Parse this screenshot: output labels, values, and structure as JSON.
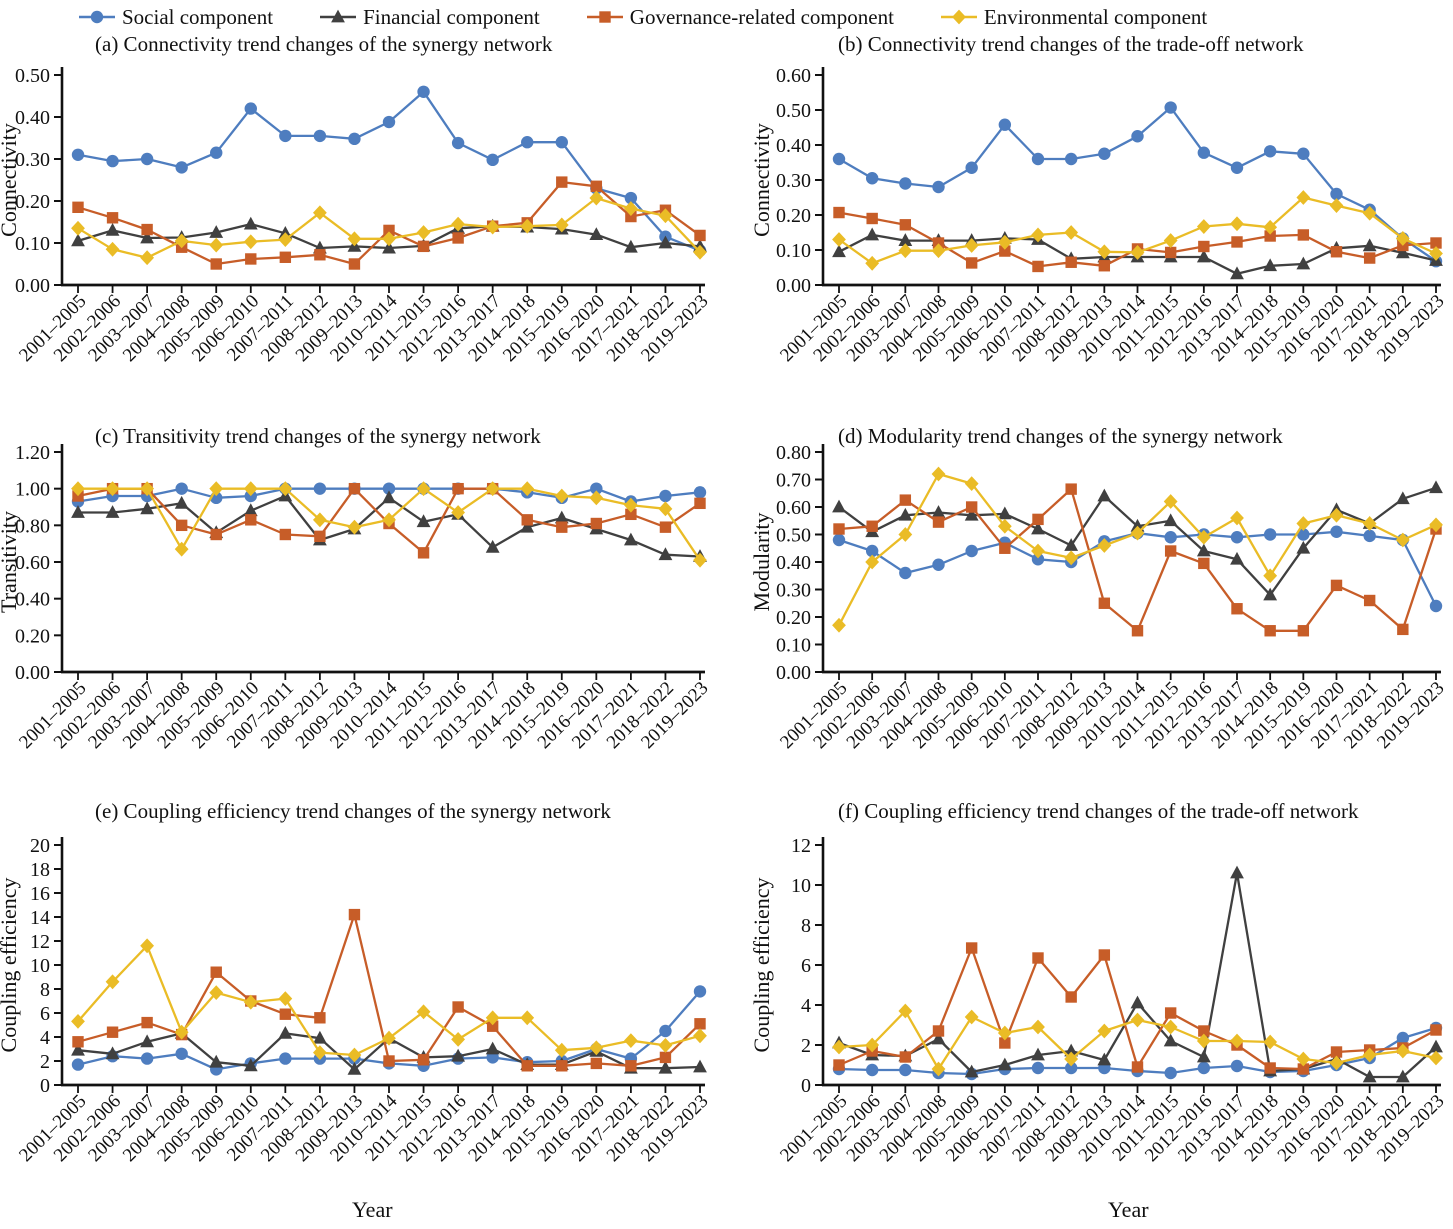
{
  "legend": {
    "items": [
      {
        "label": "Social component",
        "marker": "circle",
        "color": "#4e7dbf"
      },
      {
        "label": "Financial component",
        "marker": "triangle",
        "color": "#404040"
      },
      {
        "label": "Governance-related component",
        "marker": "square",
        "color": "#c75d28"
      },
      {
        "label": "Environmental component",
        "marker": "diamond",
        "color": "#eabc26"
      }
    ]
  },
  "xlabel": "Year",
  "categories": [
    "2001–2005",
    "2002–2006",
    "2003–2007",
    "2004–2008",
    "2005–2009",
    "2006–2010",
    "2007–2011",
    "2008–2012",
    "2009–2013",
    "2010–2014",
    "2011–2015",
    "2012–2016",
    "2013–2017",
    "2014–2018",
    "2015–2019",
    "2016–2020",
    "2017–2021",
    "2018–2022",
    "2019–2023"
  ],
  "chart_data": [
    {
      "type": "line",
      "title": "(a) Connectivity trend changes of the synergy network",
      "ylabel": "Connectivity",
      "ylim": [
        0,
        0.5
      ],
      "ytick_step": 0.1,
      "ytick_decimals": 2,
      "series": [
        {
          "name": "Social component",
          "color": "#4e7dbf",
          "marker": "circle",
          "values": [
            0.31,
            0.295,
            0.3,
            0.28,
            0.315,
            0.42,
            0.355,
            0.355,
            0.348,
            0.388,
            0.46,
            0.338,
            0.298,
            0.34,
            0.34,
            0.23,
            0.207,
            0.115,
            0.082
          ]
        },
        {
          "name": "Financial component",
          "color": "#404040",
          "marker": "triangle",
          "values": [
            0.105,
            0.13,
            0.112,
            0.113,
            0.125,
            0.145,
            0.123,
            0.088,
            0.092,
            0.088,
            0.093,
            0.135,
            0.14,
            0.138,
            0.133,
            0.12,
            0.09,
            0.1,
            0.092
          ]
        },
        {
          "name": "Governance-related component",
          "color": "#c75d28",
          "marker": "square",
          "values": [
            0.185,
            0.16,
            0.132,
            0.09,
            0.05,
            0.062,
            0.066,
            0.072,
            0.05,
            0.13,
            0.092,
            0.112,
            0.14,
            0.148,
            0.245,
            0.235,
            0.163,
            0.178,
            0.118
          ]
        },
        {
          "name": "Environmental component",
          "color": "#eabc26",
          "marker": "diamond",
          "values": [
            0.135,
            0.085,
            0.065,
            0.105,
            0.095,
            0.103,
            0.108,
            0.172,
            0.11,
            0.11,
            0.125,
            0.145,
            0.138,
            0.14,
            0.143,
            0.207,
            0.182,
            0.165,
            0.078
          ]
        }
      ]
    },
    {
      "type": "line",
      "title": "(b) Connectivity trend changes of the trade-off network",
      "ylabel": "Connectivity",
      "ylim": [
        0,
        0.6
      ],
      "ytick_step": 0.1,
      "ytick_decimals": 2,
      "series": [
        {
          "name": "Social component",
          "color": "#4e7dbf",
          "marker": "circle",
          "values": [
            0.36,
            0.305,
            0.29,
            0.28,
            0.335,
            0.458,
            0.36,
            0.36,
            0.375,
            0.425,
            0.507,
            0.378,
            0.335,
            0.382,
            0.375,
            0.26,
            0.215,
            0.133,
            0.068
          ]
        },
        {
          "name": "Financial component",
          "color": "#404040",
          "marker": "triangle",
          "values": [
            0.095,
            0.143,
            0.127,
            0.127,
            0.127,
            0.133,
            0.13,
            0.075,
            0.08,
            0.08,
            0.08,
            0.08,
            0.032,
            0.055,
            0.06,
            0.105,
            0.112,
            0.092,
            0.07
          ]
        },
        {
          "name": "Governance-related component",
          "color": "#c75d28",
          "marker": "square",
          "values": [
            0.207,
            0.19,
            0.172,
            0.12,
            0.063,
            0.097,
            0.053,
            0.065,
            0.055,
            0.103,
            0.093,
            0.11,
            0.123,
            0.14,
            0.143,
            0.095,
            0.077,
            0.113,
            0.12
          ]
        },
        {
          "name": "Environmental component",
          "color": "#eabc26",
          "marker": "diamond",
          "values": [
            0.13,
            0.062,
            0.098,
            0.098,
            0.113,
            0.122,
            0.143,
            0.15,
            0.095,
            0.093,
            0.127,
            0.167,
            0.175,
            0.165,
            0.25,
            0.227,
            0.205,
            0.133,
            0.09
          ]
        }
      ]
    },
    {
      "type": "line",
      "title": "(c) Transitivity trend changes of the synergy network",
      "ylabel": "Transitivity",
      "ylim": [
        0,
        1.2
      ],
      "ytick_step": 0.2,
      "ytick_decimals": 2,
      "series": [
        {
          "name": "Social component",
          "color": "#4e7dbf",
          "marker": "circle",
          "values": [
            0.93,
            0.96,
            0.96,
            1.0,
            0.95,
            0.96,
            1.0,
            1.0,
            1.0,
            1.0,
            1.0,
            1.0,
            1.0,
            0.98,
            0.95,
            1.0,
            0.93,
            0.96,
            0.98
          ]
        },
        {
          "name": "Financial component",
          "color": "#404040",
          "marker": "triangle",
          "values": [
            0.87,
            0.87,
            0.89,
            0.92,
            0.76,
            0.88,
            0.96,
            0.72,
            0.78,
            0.95,
            0.82,
            0.86,
            0.68,
            0.79,
            0.84,
            0.78,
            0.72,
            0.64,
            0.63
          ]
        },
        {
          "name": "Governance-related component",
          "color": "#c75d28",
          "marker": "square",
          "values": [
            0.96,
            1.0,
            1.0,
            0.8,
            0.75,
            0.83,
            0.75,
            0.74,
            1.0,
            0.81,
            0.65,
            1.0,
            1.0,
            0.83,
            0.79,
            0.81,
            0.86,
            0.79,
            0.92
          ]
        },
        {
          "name": "Environmental component",
          "color": "#eabc26",
          "marker": "diamond",
          "values": [
            1.0,
            1.0,
            1.0,
            0.67,
            1.0,
            1.0,
            1.0,
            0.83,
            0.79,
            0.83,
            1.0,
            0.87,
            1.0,
            1.0,
            0.96,
            0.95,
            0.91,
            0.89,
            0.61
          ]
        }
      ]
    },
    {
      "type": "line",
      "title": "(d) Modularity trend changes of the synergy network",
      "ylabel": "Modularity",
      "ylim": [
        0,
        0.8
      ],
      "ytick_step": 0.1,
      "ytick_decimals": 2,
      "series": [
        {
          "name": "Social component",
          "color": "#4e7dbf",
          "marker": "circle",
          "values": [
            0.48,
            0.44,
            0.36,
            0.39,
            0.44,
            0.47,
            0.41,
            0.4,
            0.475,
            0.505,
            0.49,
            0.5,
            0.49,
            0.5,
            0.5,
            0.51,
            0.495,
            0.48,
            0.24
          ]
        },
        {
          "name": "Financial component",
          "color": "#404040",
          "marker": "triangle",
          "values": [
            0.6,
            0.51,
            0.57,
            0.58,
            0.57,
            0.575,
            0.52,
            0.46,
            0.64,
            0.53,
            0.55,
            0.44,
            0.41,
            0.28,
            0.45,
            0.59,
            0.54,
            0.63,
            0.67
          ]
        },
        {
          "name": "Governance-related component",
          "color": "#c75d28",
          "marker": "square",
          "values": [
            0.52,
            0.53,
            0.625,
            0.545,
            0.6,
            0.45,
            0.555,
            0.665,
            0.25,
            0.15,
            0.44,
            0.395,
            0.23,
            0.15,
            0.15,
            0.315,
            0.26,
            0.155,
            0.52
          ]
        },
        {
          "name": "Environmental component",
          "color": "#eabc26",
          "marker": "diamond",
          "values": [
            0.17,
            0.4,
            0.5,
            0.72,
            0.685,
            0.53,
            0.44,
            0.415,
            0.46,
            0.505,
            0.62,
            0.49,
            0.56,
            0.35,
            0.54,
            0.57,
            0.54,
            0.48,
            0.535
          ]
        }
      ]
    },
    {
      "type": "line",
      "title": "(e) Coupling efficiency trend changes of the synergy network",
      "ylabel": "Coupling efficiency",
      "ylim": [
        0,
        20
      ],
      "ytick_step": 2,
      "ytick_decimals": 0,
      "series": [
        {
          "name": "Social component",
          "color": "#4e7dbf",
          "marker": "circle",
          "values": [
            1.7,
            2.4,
            2.2,
            2.6,
            1.3,
            1.8,
            2.2,
            2.2,
            2.2,
            1.8,
            1.6,
            2.2,
            2.3,
            1.9,
            2.0,
            3.0,
            2.2,
            4.5,
            7.8
          ]
        },
        {
          "name": "Financial component",
          "color": "#404040",
          "marker": "triangle",
          "values": [
            2.9,
            2.6,
            3.6,
            4.3,
            1.9,
            1.6,
            4.3,
            3.9,
            1.3,
            3.9,
            2.3,
            2.4,
            3.0,
            1.7,
            1.7,
            2.8,
            1.4,
            1.4,
            1.5
          ]
        },
        {
          "name": "Governance-related component",
          "color": "#c75d28",
          "marker": "square",
          "values": [
            3.6,
            4.4,
            5.2,
            4.2,
            9.4,
            7.0,
            5.9,
            5.6,
            14.2,
            2.0,
            2.1,
            6.5,
            4.9,
            1.6,
            1.6,
            1.8,
            1.6,
            2.3,
            5.1
          ]
        },
        {
          "name": "Environmental component",
          "color": "#eabc26",
          "marker": "diamond",
          "values": [
            5.3,
            8.6,
            11.6,
            4.4,
            7.7,
            6.9,
            7.2,
            2.7,
            2.5,
            3.9,
            6.1,
            3.8,
            5.6,
            5.6,
            2.9,
            3.1,
            3.7,
            3.3,
            4.1
          ]
        }
      ]
    },
    {
      "type": "line",
      "title": "(f) Coupling efficiency trend changes of the trade-off network",
      "ylabel": "Coupling efficiency",
      "ylim": [
        0,
        12
      ],
      "ytick_step": 2,
      "ytick_decimals": 0,
      "series": [
        {
          "name": "Social component",
          "color": "#4e7dbf",
          "marker": "circle",
          "values": [
            0.8,
            0.75,
            0.75,
            0.6,
            0.55,
            0.8,
            0.85,
            0.85,
            0.85,
            0.7,
            0.6,
            0.85,
            0.95,
            0.65,
            0.7,
            1.0,
            1.35,
            2.35,
            2.85
          ]
        },
        {
          "name": "Financial component",
          "color": "#404040",
          "marker": "triangle",
          "values": [
            2.1,
            1.5,
            1.45,
            2.3,
            0.65,
            1.0,
            1.5,
            1.7,
            1.25,
            4.1,
            2.2,
            1.4,
            10.6,
            0.7,
            0.8,
            1.3,
            0.4,
            0.4,
            1.9
          ]
        },
        {
          "name": "Governance-related component",
          "color": "#c75d28",
          "marker": "square",
          "values": [
            1.0,
            1.7,
            1.4,
            2.7,
            6.85,
            2.1,
            6.35,
            4.4,
            6.5,
            0.9,
            3.6,
            2.7,
            2.0,
            0.85,
            0.8,
            1.65,
            1.75,
            1.85,
            2.75
          ]
        },
        {
          "name": "Environmental component",
          "color": "#eabc26",
          "marker": "diamond",
          "values": [
            1.9,
            2.0,
            3.7,
            0.8,
            3.4,
            2.6,
            2.9,
            1.3,
            2.7,
            3.25,
            2.9,
            2.2,
            2.2,
            2.15,
            1.3,
            1.1,
            1.5,
            1.7,
            1.35
          ]
        }
      ]
    }
  ]
}
